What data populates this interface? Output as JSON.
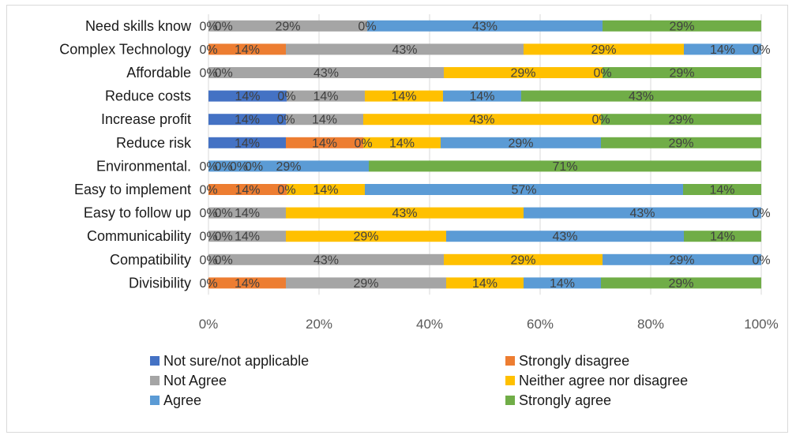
{
  "chart_data": {
    "type": "bar",
    "orientation": "horizontal",
    "stacked": true,
    "percent_stacked": true,
    "title": "",
    "xlabel": "",
    "ylabel": "",
    "xlim": [
      0,
      100
    ],
    "x_ticks": [
      "0%",
      "20%",
      "40%",
      "60%",
      "80%",
      "100%"
    ],
    "grid": "vertical",
    "legend_position": "bottom",
    "categories": [
      "Need skills know",
      "Complex Technology",
      "Affordable",
      "Reduce costs",
      "Increase profit",
      "Reduce risk",
      "Environmental.",
      "Easy to implement",
      "Easy to follow up",
      "Communicability",
      "Compatibility",
      "Divisibility"
    ],
    "series": [
      {
        "name": "Not sure/not applicable",
        "color": "#4472c4",
        "values": [
          0,
          0,
          0,
          14,
          14,
          14,
          0,
          0,
          0,
          0,
          0,
          0
        ]
      },
      {
        "name": "Strongly disagree",
        "color": "#ed7d31",
        "values": [
          0,
          14,
          0,
          0,
          0,
          14,
          0,
          14,
          0,
          0,
          0,
          14
        ]
      },
      {
        "name": "Not Agree",
        "color": "#a5a5a5",
        "values": [
          29,
          43,
          43,
          14,
          14,
          0,
          0,
          0,
          14,
          14,
          43,
          29
        ]
      },
      {
        "name": "Neither agree nor disagree",
        "color": "#ffc000",
        "values": [
          0,
          29,
          29,
          14,
          43,
          14,
          0,
          14,
          43,
          29,
          29,
          14
        ]
      },
      {
        "name": "Agree",
        "color": "#5b9bd5",
        "values": [
          43,
          14,
          0,
          14,
          0,
          29,
          29,
          57,
          43,
          43,
          29,
          14
        ]
      },
      {
        "name": "Strongly agree",
        "color": "#70ad47",
        "values": [
          29,
          0,
          29,
          43,
          29,
          29,
          71,
          14,
          0,
          14,
          0,
          29
        ]
      }
    ],
    "labels": [
      [
        "0%",
        "0%",
        "29%",
        "0%",
        "43%",
        "29%"
      ],
      [
        "0%",
        "14%",
        "43%",
        "29%",
        "14%",
        "0%"
      ],
      [
        "0%",
        "0%",
        "43%",
        "29%",
        "0%",
        "29%"
      ],
      [
        "14%",
        "0%",
        "14%",
        "14%",
        "14%",
        "43%"
      ],
      [
        "14%",
        "0%",
        "14%",
        "43%",
        "0%",
        "29%"
      ],
      [
        "14%",
        "14%",
        "0%",
        "14%",
        "29%",
        "29%"
      ],
      [
        "0%",
        "0%",
        "0%",
        "0%",
        "29%",
        "71%"
      ],
      [
        "0%",
        "14%",
        "0%",
        "14%",
        "57%",
        "14%"
      ],
      [
        "0%",
        "0%",
        "14%",
        "43%",
        "43%",
        "0%"
      ],
      [
        "0%",
        "0%",
        "14%",
        "29%",
        "43%",
        "14%"
      ],
      [
        "0%",
        "0%",
        "43%",
        "29%",
        "29%",
        "0%"
      ],
      [
        "0%",
        "14%",
        "29%",
        "14%",
        "14%",
        "29%"
      ]
    ]
  }
}
